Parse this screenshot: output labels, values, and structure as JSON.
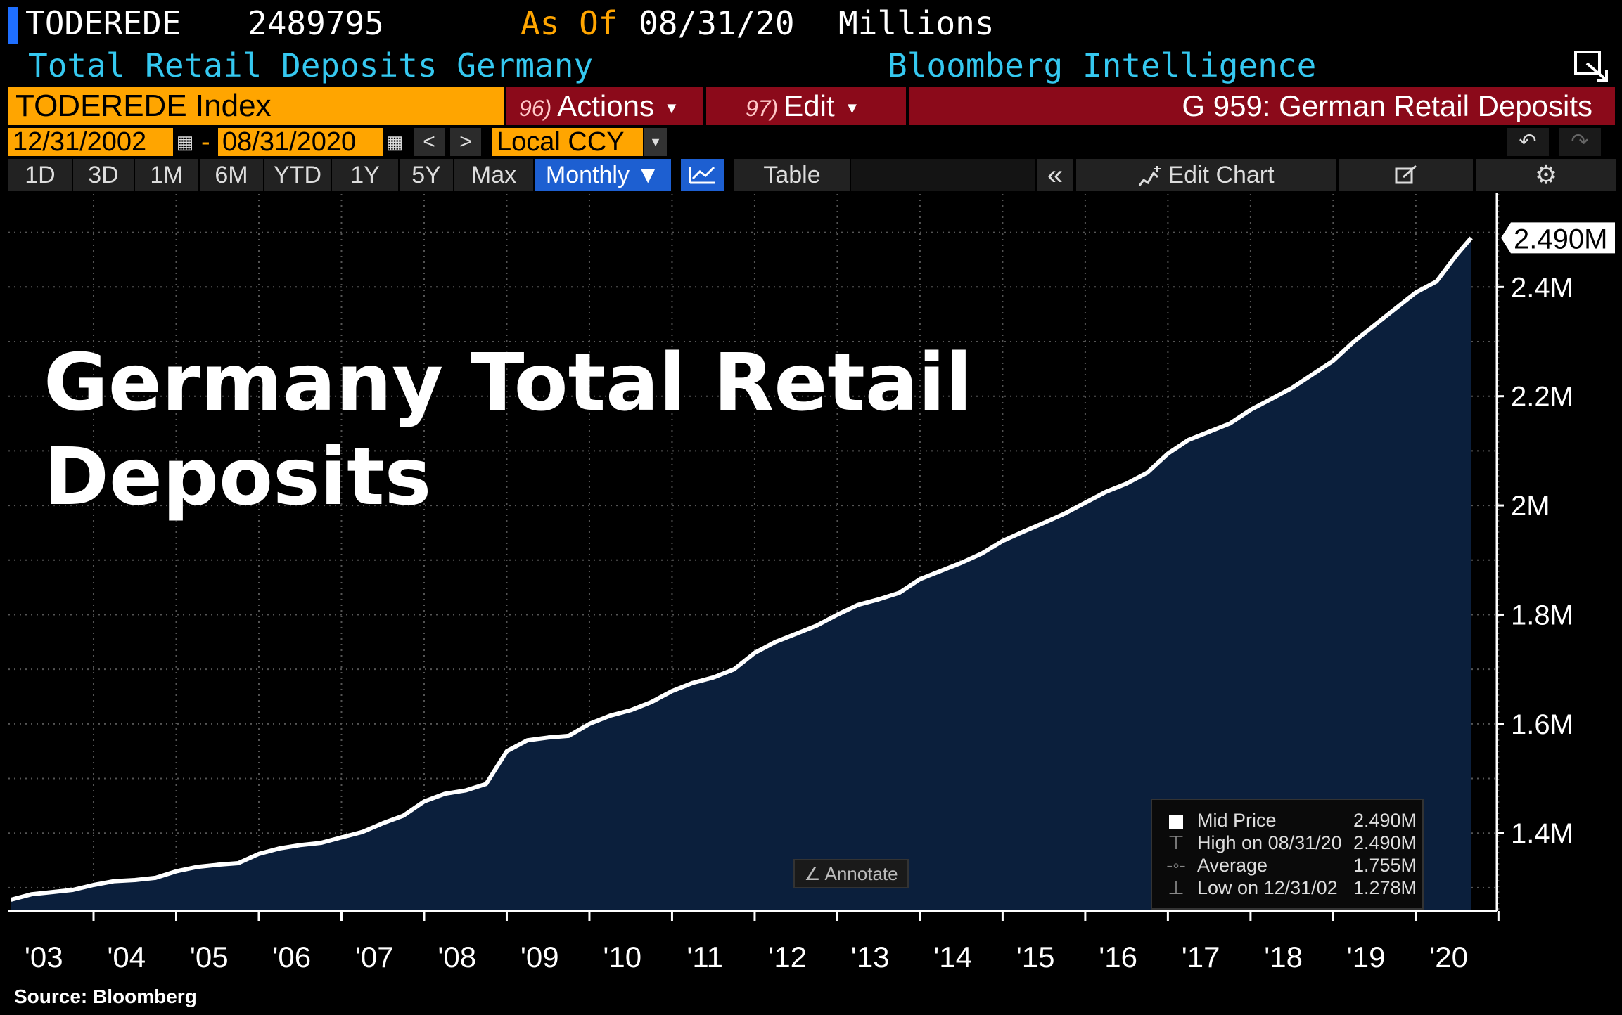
{
  "header": {
    "ticker": "TODEREDE",
    "last_value": "2489795",
    "as_of_label": "As Of",
    "as_of_date": "08/31/20",
    "units": "Millions",
    "subtitle": "Total Retail Deposits Germany",
    "provider": "Bloomberg Intelligence"
  },
  "toolbar": {
    "security": "TODEREDE Index",
    "actions_num": "96)",
    "actions_label": "Actions",
    "edit_num": "97)",
    "edit_label": "Edit",
    "page_title": "G 959: German Retail Deposits",
    "start_date": "12/31/2002",
    "date_sep": "-",
    "end_date": "08/31/2020",
    "currency": "Local CCY",
    "ranges": [
      "1D",
      "3D",
      "1M",
      "6M",
      "YTD",
      "1Y",
      "5Y",
      "Max"
    ],
    "frequency": "Monthly ▼",
    "table_label": "Table",
    "edit_chart_label": "Edit Chart"
  },
  "colors": {
    "orange": "#ffa500",
    "red": "#8b0a1a",
    "cyan": "#35c8f0",
    "fill": "#0b1f3c",
    "line": "#ffffff"
  },
  "overlay_title_line1": "Germany Total Retail",
  "overlay_title_line2": "Deposits",
  "annotate_label": "Annotate",
  "legend": {
    "items": [
      {
        "label": "Mid Price",
        "value": "2.490M"
      },
      {
        "label": "High on 08/31/20",
        "value": "2.490M"
      },
      {
        "label": "Average",
        "value": "1.755M"
      },
      {
        "label": "Low on 12/31/02",
        "value": "1.278M"
      }
    ]
  },
  "source": "Source: Bloomberg",
  "chart_data": {
    "type": "area",
    "title": "Germany Total Retail Deposits",
    "units": "Millions (EUR)",
    "frequency": "Monthly",
    "last_value_label": "2.490M",
    "x_range": [
      2003.0,
      2020.67
    ],
    "ylim": [
      1.26,
      2.56
    ],
    "y_ticks": [
      {
        "v": 1.4,
        "label": "1.4M"
      },
      {
        "v": 1.6,
        "label": "1.6M"
      },
      {
        "v": 1.8,
        "label": "1.8M"
      },
      {
        "v": 2.0,
        "label": "2M"
      },
      {
        "v": 2.2,
        "label": "2.2M"
      },
      {
        "v": 2.4,
        "label": "2.4M"
      }
    ],
    "x_ticks": [
      "'03",
      "'04",
      "'05",
      "'06",
      "'07",
      "'08",
      "'09",
      "'10",
      "'11",
      "'12",
      "'13",
      "'14",
      "'15",
      "'16",
      "'17",
      "'18",
      "'19",
      "'20"
    ],
    "x_tick_years": [
      2003,
      2004,
      2005,
      2006,
      2007,
      2008,
      2009,
      2010,
      2011,
      2012,
      2013,
      2014,
      2015,
      2016,
      2017,
      2018,
      2019,
      2020
    ],
    "series": [
      {
        "name": "Mid Price",
        "x": [
          2003.0,
          2003.25,
          2003.5,
          2003.75,
          2004.0,
          2004.25,
          2004.5,
          2004.75,
          2005.0,
          2005.25,
          2005.5,
          2005.75,
          2006.0,
          2006.25,
          2006.5,
          2006.75,
          2007.0,
          2007.25,
          2007.5,
          2007.75,
          2008.0,
          2008.25,
          2008.5,
          2008.75,
          2009.0,
          2009.25,
          2009.5,
          2009.75,
          2010.0,
          2010.25,
          2010.5,
          2010.75,
          2011.0,
          2011.25,
          2011.5,
          2011.75,
          2012.0,
          2012.25,
          2012.5,
          2012.75,
          2013.0,
          2013.25,
          2013.5,
          2013.75,
          2014.0,
          2014.25,
          2014.5,
          2014.75,
          2015.0,
          2015.25,
          2015.5,
          2015.75,
          2016.0,
          2016.25,
          2016.5,
          2016.75,
          2017.0,
          2017.25,
          2017.5,
          2017.75,
          2018.0,
          2018.25,
          2018.5,
          2018.75,
          2019.0,
          2019.25,
          2019.5,
          2019.75,
          2020.0,
          2020.25,
          2020.5,
          2020.67
        ],
        "values": [
          1.278,
          1.288,
          1.292,
          1.296,
          1.305,
          1.312,
          1.314,
          1.318,
          1.33,
          1.338,
          1.342,
          1.345,
          1.362,
          1.372,
          1.378,
          1.382,
          1.392,
          1.402,
          1.418,
          1.432,
          1.458,
          1.472,
          1.478,
          1.49,
          1.55,
          1.57,
          1.575,
          1.578,
          1.6,
          1.615,
          1.625,
          1.64,
          1.66,
          1.675,
          1.685,
          1.7,
          1.73,
          1.75,
          1.765,
          1.78,
          1.8,
          1.818,
          1.828,
          1.84,
          1.865,
          1.88,
          1.895,
          1.912,
          1.935,
          1.952,
          1.968,
          1.985,
          2.005,
          2.025,
          2.04,
          2.06,
          2.095,
          2.12,
          2.135,
          2.15,
          2.175,
          2.195,
          2.215,
          2.24,
          2.265,
          2.3,
          2.33,
          2.36,
          2.39,
          2.41,
          2.46,
          2.49
        ]
      }
    ]
  }
}
